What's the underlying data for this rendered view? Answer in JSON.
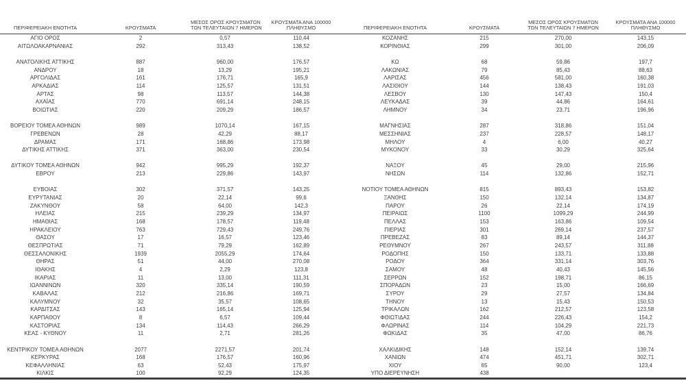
{
  "page": {
    "background": "#ffffff",
    "text_color": "#3c3c3c",
    "line_color": "#3f3f3f"
  },
  "headers": {
    "region": "ΠΕΡΙΦΕΡΕΙΑΚΗ ΕΝΟΤΗΤΑ",
    "cases": "ΚΡΟΥΣΜΑΤΑ",
    "avg7_line1": "ΜΕΣΟΣ ΟΡΟΣ ΚΡΟΥΣΜΑΤΩΝ",
    "avg7_line2": "ΤΩΝ ΤΕΛΕΥΤΑΙΩΝ 7 ΗΜΕΡΩΝ",
    "per100k_line1": "ΚΡΟΥΣΜΑΤΑ ΑΝΑ 100000",
    "per100k_line2": "ΠΛΗΘΥΣΜΟ"
  },
  "left_table": {
    "rows": [
      [
        "ΑΓΙΟ ΟΡΟΣ",
        "2",
        "0,57",
        "110,44"
      ],
      [
        "ΑΙΤΩΛΟΑΚΑΡΝΑΝΙΑΣ",
        "292",
        "313,43",
        "138,52"
      ],
      [
        "",
        "",
        "",
        ""
      ],
      [
        "ΑΝΑΤΟΛΙΚΗΣ ΑΤΤΙΚΗΣ",
        "887",
        "960,00",
        "176,57"
      ],
      [
        "ΑΝΔΡΟΥ",
        "18",
        "13,29",
        "195,21"
      ],
      [
        "ΑΡΓΟΛΙΔΑΣ",
        "161",
        "176,71",
        "165,9"
      ],
      [
        "ΑΡΚΑΔΙΑΣ",
        "114",
        "125,57",
        "131,51"
      ],
      [
        "ΑΡΤΑΣ",
        "98",
        "113,57",
        "144,38"
      ],
      [
        "ΑΧΑΪΑΣ",
        "770",
        "691,14",
        "248,15"
      ],
      [
        "ΒΟΙΩΤΙΑΣ",
        "220",
        "209,29",
        "186,57"
      ],
      [
        "",
        "",
        "",
        ""
      ],
      [
        "ΒΟΡΕΙΟΥ ΤΟΜΕΑ ΑΘΗΝΩΝ",
        "989",
        "1070,14",
        "167,15"
      ],
      [
        "ΓΡΕΒΕΝΩΝ",
        "28",
        "42,29",
        "88,17"
      ],
      [
        "ΔΡΑΜΑΣ",
        "171",
        "168,86",
        "173,98"
      ],
      [
        "ΔΥΤΙΚΗΣ ΑΤΤΙΚΗΣ",
        "371",
        "363,00",
        "230,54"
      ],
      [
        "",
        "",
        "",
        ""
      ],
      [
        "ΔΥΤΙΚΟΥ ΤΟΜΕΑ ΑΘΗΝΩΝ",
        "942",
        "995,29",
        "192,37"
      ],
      [
        "ΕΒΡΟΥ",
        "213",
        "229,86",
        "143,97"
      ],
      [
        "",
        "",
        "",
        ""
      ],
      [
        "ΕΥΒΟΙΑΣ",
        "302",
        "371,57",
        "143,25"
      ],
      [
        "ΕΥΡΥΤΑΝΙΑΣ",
        "20",
        "22,14",
        "99,6"
      ],
      [
        "ΖΑΚΥΝΘΟΥ",
        "58",
        "64,00",
        "142,3"
      ],
      [
        "ΗΛΕΙΑΣ",
        "215",
        "239,29",
        "134,97"
      ],
      [
        "ΗΜΑΘΙΑΣ",
        "168",
        "178,57",
        "119,48"
      ],
      [
        "ΗΡΑΚΛΕΙΟΥ",
        "763",
        "729,43",
        "249,76"
      ],
      [
        "ΘΑΣΟΥ",
        "17",
        "16,57",
        "123,46"
      ],
      [
        "ΘΕΣΠΡΩΤΙΑΣ",
        "71",
        "79,29",
        "162,89"
      ],
      [
        "ΘΕΣΣΑΛΟΝΙΚΗΣ",
        "1939",
        "2055,29",
        "174,64"
      ],
      [
        "ΘΗΡΑΣ",
        "51",
        "44,00",
        "270,08"
      ],
      [
        "ΙΘΑΚΗΣ",
        "4",
        "2,29",
        "123,8"
      ],
      [
        "ΙΚΑΡΙΑΣ",
        "11",
        "13,00",
        "111,31"
      ],
      [
        "ΙΩΑΝΝΙΝΩΝ",
        "320",
        "335,14",
        "190,59"
      ],
      [
        "ΚΑΒΑΛΑΣ",
        "212",
        "216,86",
        "169,71"
      ],
      [
        "ΚΑΛΥΜΝΟΥ",
        "32",
        "35,57",
        "108,65"
      ],
      [
        "ΚΑΡΔΙΤΣΑΣ",
        "143",
        "165,14",
        "125,94"
      ],
      [
        "ΚΑΡΠΑΘΟΥ",
        "8",
        "6,57",
        "109,44"
      ],
      [
        "ΚΑΣΤΟΡΙΑΣ",
        "134",
        "114,43",
        "266,29"
      ],
      [
        "ΚΕΑΣ - ΚΥΘΝΟΥ",
        "11",
        "2,71",
        "281,26"
      ],
      [
        "",
        "",
        "",
        ""
      ],
      [
        "ΚΕΝΤΡΙΚΟΥ ΤΟΜΕΑ ΑΘΗΝΩΝ",
        "2077",
        "2271,57",
        "201,74"
      ],
      [
        "ΚΕΡΚΥΡΑΣ",
        "168",
        "176,57",
        "160,96"
      ],
      [
        "ΚΕΦΑΛΛΗΝΙΑΣ",
        "63",
        "52,43",
        "175,97"
      ],
      [
        "ΚΙΛΚΙΣ",
        "100",
        "92,29",
        "124,35"
      ]
    ]
  },
  "right_table": {
    "rows": [
      [
        "ΚΟΖΑΝΗΣ",
        "215",
        "270,00",
        "143,15"
      ],
      [
        "ΚΟΡΙΝΘΙΑΣ",
        "299",
        "301,00",
        "206,09"
      ],
      [
        "",
        "",
        "",
        ""
      ],
      [
        "ΚΩ",
        "68",
        "59,86",
        "197,7"
      ],
      [
        "ΛΑΚΩΝΙΑΣ",
        "79",
        "85,43",
        "88,63"
      ],
      [
        "ΛΑΡΙΣΑΣ",
        "456",
        "581,00",
        "160,38"
      ],
      [
        "ΛΑΣΙΘΙΟΥ",
        "144",
        "138,43",
        "191,03"
      ],
      [
        "ΛΕΣΒΟΥ",
        "130",
        "147,43",
        "150,4"
      ],
      [
        "ΛΕΥΚΑΔΑΣ",
        "39",
        "44,86",
        "164,61"
      ],
      [
        "ΛΗΜΝΟΥ",
        "34",
        "23,71",
        "196,96"
      ],
      [
        "",
        "",
        "",
        ""
      ],
      [
        "ΜΑΓΝΗΣΙΑΣ",
        "287",
        "318,86",
        "151,04"
      ],
      [
        "ΜΕΣΣΗΝΙΑΣ",
        "237",
        "228,57",
        "148,17"
      ],
      [
        "ΜΗΛΟΥ",
        "4",
        "6,00",
        "40,27"
      ],
      [
        "ΜΥΚΟΝΟΥ",
        "33",
        "30,29",
        "325,64"
      ],
      [
        "",
        "",
        "",
        ""
      ],
      [
        "ΝΑΞΟΥ",
        "45",
        "29,00",
        "215,96"
      ],
      [
        "ΝΗΣΩΝ",
        "114",
        "132,86",
        "152,71"
      ],
      [
        "",
        "",
        "",
        ""
      ],
      [
        "ΝΟΤΙΟΥ ΤΟΜΕΑ ΑΘΗΝΩΝ",
        "815",
        "893,43",
        "153,82"
      ],
      [
        "ΞΑΝΘΗΣ",
        "150",
        "132,14",
        "134,87"
      ],
      [
        "ΠΑΡΟΥ",
        "26",
        "22,14",
        "174,19"
      ],
      [
        "ΠΕΙΡΑΙΩΣ",
        "1100",
        "1099,29",
        "244,99"
      ],
      [
        "ΠΕΛΛΑΣ",
        "153",
        "163,86",
        "109,54"
      ],
      [
        "ΠΙΕΡΙΑΣ",
        "301",
        "269,14",
        "237,57"
      ],
      [
        "ΠΡΕΒΕΖΑΣ",
        "83",
        "89,14",
        "144,37"
      ],
      [
        "ΡΕΘΥΜΝΟΥ",
        "267",
        "243,57",
        "311,88"
      ],
      [
        "ΡΟΔΟΠΗΣ",
        "150",
        "133,71",
        "133,88"
      ],
      [
        "ΡΟΔΟΥ",
        "364",
        "331,14",
        "303,76"
      ],
      [
        "ΣΑΜΟΥ",
        "48",
        "40,43",
        "145,56"
      ],
      [
        "ΣΕΡΡΩΝ",
        "152",
        "198,71",
        "86,15"
      ],
      [
        "ΣΠΟΡΑΔΩΝ",
        "23",
        "15,00",
        "166,69"
      ],
      [
        "ΣΥΡΟΥ",
        "29",
        "27,57",
        "134,84"
      ],
      [
        "ΤΗΝΟΥ",
        "13",
        "15,43",
        "150,53"
      ],
      [
        "ΤΡΙΚΑΛΩΝ",
        "162",
        "212,57",
        "123,58"
      ],
      [
        "ΦΘΙΩΤΙΔΑΣ",
        "244",
        "226,43",
        "154,2"
      ],
      [
        "ΦΛΩΡΙΝΑΣ",
        "114",
        "104,29",
        "221,73"
      ],
      [
        "ΦΩΚΙΔΑΣ",
        "35",
        "47,00",
        "86,76"
      ],
      [
        "",
        "",
        "",
        ""
      ],
      [
        "ΧΑΛΚΙΔΙΚΗΣ",
        "148",
        "152,14",
        "139,74"
      ],
      [
        "ΧΑΝΙΩΝ",
        "474",
        "451,71",
        "302,71"
      ],
      [
        "ΧΙΟΥ",
        "65",
        "90,00",
        "123,4"
      ],
      [
        "ΥΠΟ ΔΙΕΡΕΥΝΗΣΗ",
        "438",
        "",
        ""
      ]
    ]
  }
}
